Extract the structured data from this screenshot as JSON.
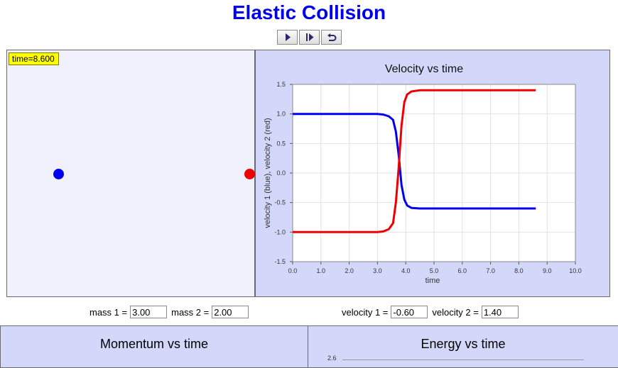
{
  "title": "Elastic Collision",
  "controls": [
    "play",
    "step-forward",
    "reset"
  ],
  "simulation": {
    "time_label": "time=8.600"
  },
  "chart_data": {
    "type": "line",
    "title": "Velocity vs time",
    "xlabel": "time",
    "ylabel": "velocity 1 (blue), velocity 2 (red)",
    "xlim": [
      0.0,
      10.0
    ],
    "ylim": [
      -1.5,
      1.5
    ],
    "x_ticks": [
      "0.0",
      "1.0",
      "2.0",
      "3.0",
      "4.0",
      "5.0",
      "6.0",
      "7.0",
      "8.0",
      "9.0",
      "10.0"
    ],
    "y_ticks": [
      "1.5",
      "1.0",
      "0.5",
      "0.0",
      "-0.5",
      "-1.0",
      "-1.5"
    ],
    "grid": true,
    "series": [
      {
        "color": "#0000ee",
        "points": [
          [
            0,
            1.0
          ],
          [
            3.0,
            1.0
          ],
          [
            3.2,
            0.99
          ],
          [
            3.4,
            0.96
          ],
          [
            3.55,
            0.9
          ],
          [
            3.65,
            0.7
          ],
          [
            3.75,
            0.3
          ],
          [
            3.85,
            -0.2
          ],
          [
            3.95,
            -0.45
          ],
          [
            4.05,
            -0.55
          ],
          [
            4.2,
            -0.59
          ],
          [
            4.5,
            -0.6
          ],
          [
            8.6,
            -0.6
          ]
        ]
      },
      {
        "color": "#ee0000",
        "points": [
          [
            0,
            -1.0
          ],
          [
            3.0,
            -1.0
          ],
          [
            3.2,
            -0.99
          ],
          [
            3.4,
            -0.95
          ],
          [
            3.55,
            -0.85
          ],
          [
            3.65,
            -0.5
          ],
          [
            3.75,
            0.1
          ],
          [
            3.85,
            0.8
          ],
          [
            3.95,
            1.2
          ],
          [
            4.05,
            1.33
          ],
          [
            4.2,
            1.38
          ],
          [
            4.5,
            1.4
          ],
          [
            8.6,
            1.4
          ]
        ]
      }
    ]
  },
  "inputs": {
    "mass1_label": "mass 1 =",
    "mass1_value": "3.00",
    "mass2_label": "mass 2 =",
    "mass2_value": "2.00",
    "velocity1_label": "velocity 1 =",
    "velocity1_value": "-0.60",
    "velocity2_label": "velocity 2 =",
    "velocity2_value": "1.40"
  },
  "bottom_panels": {
    "momentum_title": "Momentum vs time",
    "energy_title": "Energy vs time",
    "energy_first_tick": "2.6"
  },
  "colors": {
    "ball1": "#0000ee",
    "ball2": "#ee0000",
    "panel": "#d3d8fb",
    "sim_bg": "#f1f1fe",
    "title": "#0000ee"
  }
}
